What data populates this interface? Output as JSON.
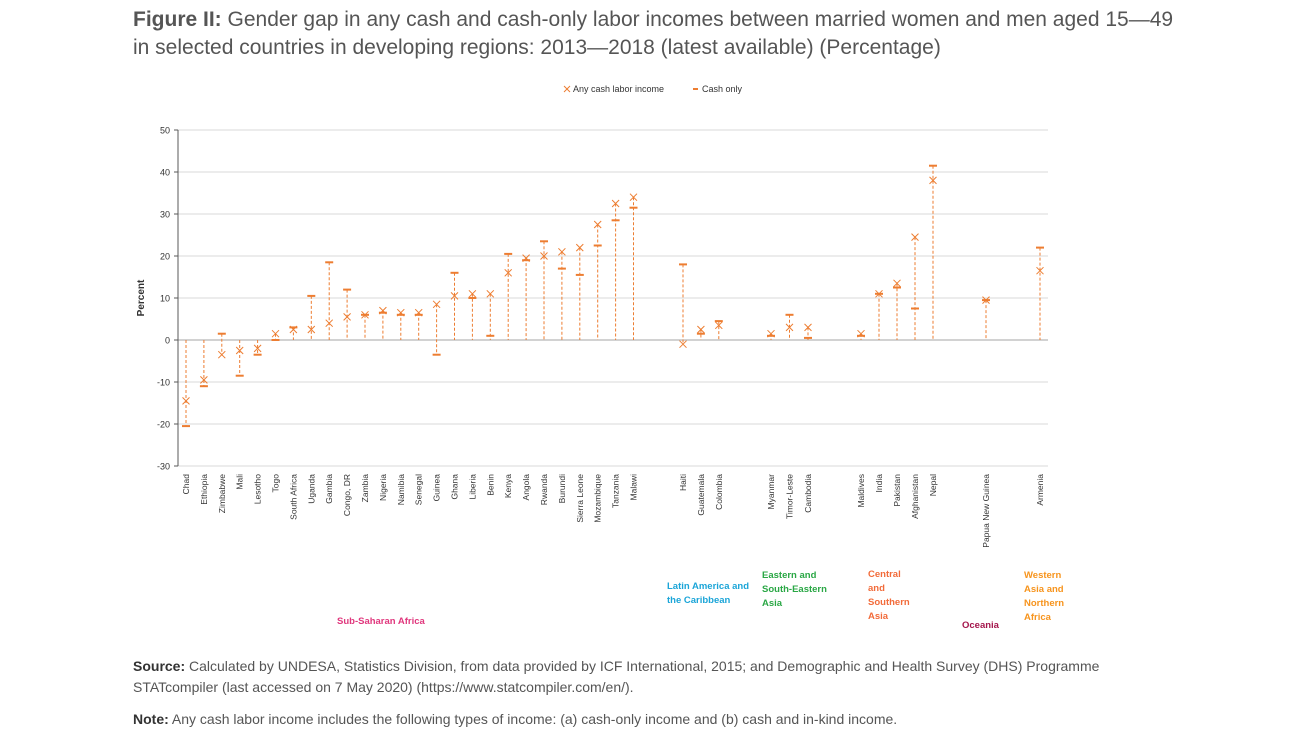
{
  "figure": {
    "label": "Figure II:",
    "title": "Gender gap in any cash and cash-only labor incomes between married women and men aged 15—49 in selected countries in developing regions: 2013—2018 (latest available) (Percentage)"
  },
  "colors": {
    "series": "#ED7D31",
    "grid": "#d9d9d9",
    "axis": "#595959"
  },
  "chart_data": {
    "type": "scatter",
    "ylabel": "Percent",
    "ylim": [
      -30,
      50
    ],
    "yticks": [
      -30,
      -20,
      -10,
      0,
      10,
      20,
      30,
      40,
      50
    ],
    "grid": true,
    "legend_position": "top",
    "legend": [
      {
        "label": "Any cash labor income",
        "marker": "x"
      },
      {
        "label": "Cash only",
        "marker": "dash"
      }
    ],
    "series_names": [
      "Any cash labor income",
      "Cash only"
    ],
    "groups": [
      {
        "region": "Sub-Saharan Africa",
        "color": "#E0377D",
        "points": [
          {
            "country": "Chad",
            "any_cash": -14.5,
            "cash_only": -20.5
          },
          {
            "country": "Ethiopia",
            "any_cash": -9.5,
            "cash_only": -11.0
          },
          {
            "country": "Zimbabwe",
            "any_cash": -3.5,
            "cash_only": 1.5
          },
          {
            "country": "Mali",
            "any_cash": -2.5,
            "cash_only": -8.5
          },
          {
            "country": "Lesotho",
            "any_cash": -2.0,
            "cash_only": -3.5
          },
          {
            "country": "Togo",
            "any_cash": 1.5,
            "cash_only": 0.0
          },
          {
            "country": "South Africa",
            "any_cash": 2.5,
            "cash_only": 3.0
          },
          {
            "country": "Uganda",
            "any_cash": 2.5,
            "cash_only": 10.5
          },
          {
            "country": "Gambia",
            "any_cash": 4.0,
            "cash_only": 18.5
          },
          {
            "country": "Congo, DR",
            "any_cash": 5.5,
            "cash_only": 12.0
          },
          {
            "country": "Zambia",
            "any_cash": 6.0,
            "cash_only": 6.0
          },
          {
            "country": "Nigeria",
            "any_cash": 7.0,
            "cash_only": 6.5
          },
          {
            "country": "Namibia",
            "any_cash": 6.5,
            "cash_only": 6.0
          },
          {
            "country": "Senegal",
            "any_cash": 6.5,
            "cash_only": 6.0
          },
          {
            "country": "Guinea",
            "any_cash": 8.5,
            "cash_only": -3.5
          },
          {
            "country": "Ghana",
            "any_cash": 10.5,
            "cash_only": 16.0
          },
          {
            "country": "Liberia",
            "any_cash": 11.0,
            "cash_only": 10.0
          },
          {
            "country": "Benin",
            "any_cash": 11.0,
            "cash_only": 1.0
          },
          {
            "country": "Kenya",
            "any_cash": 16.0,
            "cash_only": 20.5
          },
          {
            "country": "Angola",
            "any_cash": 19.5,
            "cash_only": 19.0
          },
          {
            "country": "Rwanda",
            "any_cash": 20.0,
            "cash_only": 23.5
          },
          {
            "country": "Burundi",
            "any_cash": 21.0,
            "cash_only": 17.0
          },
          {
            "country": "Sierra Leone",
            "any_cash": 22.0,
            "cash_only": 15.5
          },
          {
            "country": "Mozambique",
            "any_cash": 27.5,
            "cash_only": 22.5
          },
          {
            "country": "Tanzania",
            "any_cash": 32.5,
            "cash_only": 28.5
          },
          {
            "country": "Malawi",
            "any_cash": 34.0,
            "cash_only": 31.5
          }
        ]
      },
      {
        "region": "Latin America and the Caribbean",
        "color": "#1BA5D8",
        "points": [
          {
            "country": "Haiti",
            "any_cash": -1.0,
            "cash_only": 18.0
          },
          {
            "country": "Guatemala",
            "any_cash": 2.5,
            "cash_only": 1.5
          },
          {
            "country": "Colombia",
            "any_cash": 3.5,
            "cash_only": 4.5
          }
        ]
      },
      {
        "region": "Eastern and South-Eastern Asia",
        "color": "#2AA745",
        "points": [
          {
            "country": "Myanmar",
            "any_cash": 1.5,
            "cash_only": 1.0
          },
          {
            "country": "Timor-Leste",
            "any_cash": 3.0,
            "cash_only": 6.0
          },
          {
            "country": "Cambodia",
            "any_cash": 3.0,
            "cash_only": 0.5
          }
        ]
      },
      {
        "region": "Central and Southern Asia",
        "color": "#F26B3A",
        "points": [
          {
            "country": "Maldives",
            "any_cash": 1.5,
            "cash_only": 1.0
          },
          {
            "country": "India",
            "any_cash": 11.0,
            "cash_only": 11.0
          },
          {
            "country": "Pakistan",
            "any_cash": 13.5,
            "cash_only": 12.5
          },
          {
            "country": "Afghanistan",
            "any_cash": 24.5,
            "cash_only": 7.5
          },
          {
            "country": "Nepal",
            "any_cash": 38.0,
            "cash_only": 41.5
          }
        ]
      },
      {
        "region": "Oceania",
        "color": "#A4154B",
        "points": [
          {
            "country": "Papua New Guinea",
            "any_cash": 9.5,
            "cash_only": 9.5
          }
        ]
      },
      {
        "region": "Western Asia and Northern Africa",
        "color": "#F7941D",
        "points": [
          {
            "country": "Armenia",
            "any_cash": 16.5,
            "cash_only": 22.0
          }
        ]
      }
    ]
  },
  "source": {
    "label": "Source:",
    "text": "Calculated by UNDESA, Statistics Division, from data provided by ICF International, 2015; and Demographic and Health Survey (DHS) Programme STATcompiler (last accessed on 7 May 2020) (https://www.statcompiler.com/en/)."
  },
  "note": {
    "label": "Note:",
    "text": "Any cash labor income includes the following types of income: (a) cash-only income and (b) cash and in-kind income."
  }
}
